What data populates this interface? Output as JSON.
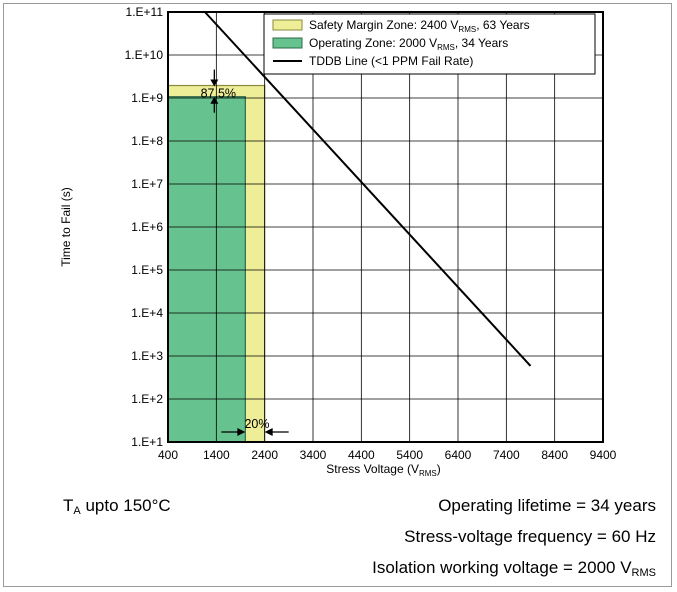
{
  "chart_data": {
    "type": "line",
    "ylabel": "Time to Fail (s)",
    "xlabel": "Stress Voltage (V",
    "xlabel_sub": "RMS",
    "xlabel_close": ")",
    "x_ticks": [
      400,
      1400,
      2400,
      3400,
      4400,
      5400,
      6400,
      7400,
      8400,
      9400
    ],
    "x_tick_labels": [
      "400",
      "1400",
      "2400",
      "3400",
      "4400",
      "5400",
      "6400",
      "7400",
      "8400",
      "9400"
    ],
    "xlim": [
      400,
      9400
    ],
    "y_scale": "log",
    "ylim_log10": [
      1,
      11
    ],
    "y_tick_labels": [
      "1.E+11",
      "1.E+10",
      "1.E+9",
      "1.E+8",
      "1.E+7",
      "1.E+6",
      "1.E+5",
      "1.E+4",
      "1.E+3",
      "1.E+2",
      "1.E+1"
    ],
    "grid": true,
    "legend_position": "top-right",
    "series": [
      {
        "name": "Safety Margin Zone",
        "kind": "zone",
        "x_max": 2400,
        "y_max_log10": 9.29,
        "color": "#eeee99",
        "legend_parts": [
          "Safety Margin Zone: 2400 V",
          "RMS",
          ", 63 Years"
        ]
      },
      {
        "name": "Operating Zone",
        "kind": "zone",
        "x_max": 2000,
        "y_max_log10": 9.03,
        "color": "#66c28e",
        "legend_parts": [
          "Operating Zone: 2000 V",
          "RMS",
          ", 34 Years"
        ]
      },
      {
        "name": "TDDB Line",
        "kind": "line",
        "x": [
          1000,
          7900
        ],
        "y_log10": [
          11.2,
          2.77
        ],
        "color": "#000000",
        "legend_parts": [
          "TDDB Line (<1 PPM Fail Rate)"
        ]
      }
    ],
    "annotations": [
      {
        "text": "87.5%",
        "kind": "vertical-margin",
        "x_data": 1400
      },
      {
        "text": "20%",
        "kind": "horizontal-margin",
        "y_log10": 1.2
      }
    ]
  },
  "notes": {
    "temp_prefix": "T",
    "temp_sub": "A",
    "temp_suffix": " upto 150°C",
    "lifetime": "Operating lifetime = 34 years",
    "frequency": "Stress-voltage frequency = 60 Hz",
    "isolation_prefix": "Isolation working voltage = 2000 V",
    "isolation_sub": "RMS"
  }
}
